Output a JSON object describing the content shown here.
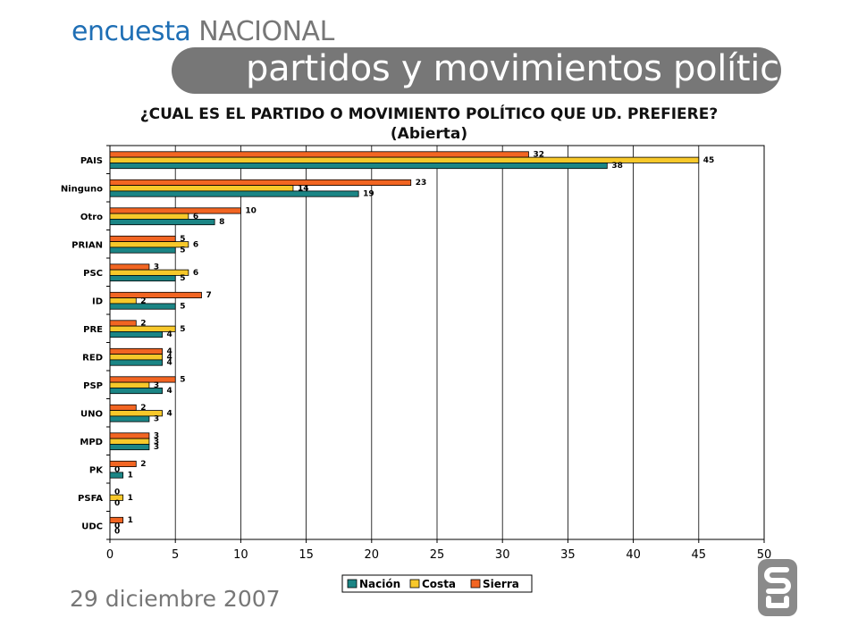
{
  "header": {
    "brand_part1": "encuesta",
    "brand_part2": "NACIONAL",
    "banner_title": "partidos y movimientos políticos"
  },
  "question": {
    "line1": "¿CUAL ES EL PARTIDO O MOVIMIENTO POLÍTICO QUE UD. PREFIERE?",
    "line2": "(Abierta)"
  },
  "footer": {
    "date": "29 diciembre 2007"
  },
  "colors": {
    "Nacion": "#1b8585",
    "Costa": "#f7c82a",
    "Sierra": "#f26522",
    "brand_blue": "#1f6fb5",
    "gray": "#777777"
  },
  "chart_data": {
    "type": "bar",
    "orientation": "horizontal",
    "categories": [
      "PAIS",
      "Ninguno",
      "Otro",
      "PRIAN",
      "PSC",
      "ID",
      "PRE",
      "RED",
      "PSP",
      "UNO",
      "MPD",
      "PK",
      "PSFA",
      "UDC"
    ],
    "series": [
      {
        "name": "Sierra",
        "values": [
          32,
          23,
          10,
          5,
          3,
          7,
          2,
          4,
          5,
          2,
          3,
          2,
          0,
          1
        ]
      },
      {
        "name": "Costa",
        "values": [
          45,
          14,
          6,
          6,
          6,
          2,
          5,
          4,
          3,
          4,
          3,
          0,
          1,
          0
        ]
      },
      {
        "name": "Nación",
        "values": [
          38,
          19,
          8,
          5,
          5,
          5,
          4,
          4,
          4,
          3,
          3,
          1,
          0,
          0
        ]
      }
    ],
    "xlim": [
      0,
      50
    ],
    "xticks": [
      0,
      5,
      10,
      15,
      20,
      25,
      30,
      35,
      40,
      45,
      50
    ],
    "legend": [
      "Nación",
      "Costa",
      "Sierra"
    ],
    "legend_position": "bottom",
    "grid": "vertical"
  }
}
